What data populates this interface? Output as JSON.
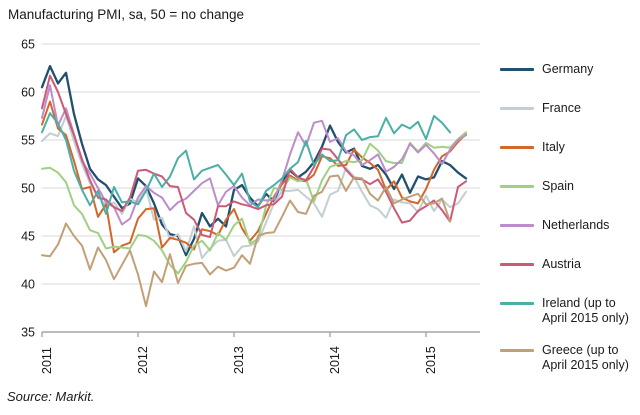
{
  "title": "Manufacturing PMI, sa, 50 = no change",
  "source": "Source: Markit.",
  "colors": {
    "gridline": "#d9d9d9",
    "axis": "#a6a6a6",
    "tick_label": "#1a1a1a"
  },
  "chart_data": {
    "type": "line",
    "title": "Manufacturing PMI, sa, 50 = no change",
    "xlabel": "",
    "ylabel": "",
    "ylim": [
      35,
      65
    ],
    "y_ticks": [
      65,
      60,
      55,
      50,
      45,
      40,
      35
    ],
    "x_ticks": [
      "2011",
      "2012",
      "2013",
      "2014",
      "2015"
    ],
    "grid": "horizontal",
    "legend_position": "right",
    "x": [
      "2011-01",
      "2011-02",
      "2011-03",
      "2011-04",
      "2011-05",
      "2011-06",
      "2011-07",
      "2011-08",
      "2011-09",
      "2011-10",
      "2011-11",
      "2011-12",
      "2012-01",
      "2012-02",
      "2012-03",
      "2012-04",
      "2012-05",
      "2012-06",
      "2012-07",
      "2012-08",
      "2012-09",
      "2012-10",
      "2012-11",
      "2012-12",
      "2013-01",
      "2013-02",
      "2013-03",
      "2013-04",
      "2013-05",
      "2013-06",
      "2013-07",
      "2013-08",
      "2013-09",
      "2013-10",
      "2013-11",
      "2013-12",
      "2014-01",
      "2014-02",
      "2014-03",
      "2014-04",
      "2014-05",
      "2014-06",
      "2014-07",
      "2014-08",
      "2014-09",
      "2014-10",
      "2014-11",
      "2014-12",
      "2015-01",
      "2015-02",
      "2015-03",
      "2015-04",
      "2015-05",
      "2015-06"
    ],
    "series": [
      {
        "name": "Germany",
        "color": "#21506f",
        "width": 2.3,
        "values": [
          60.5,
          62.7,
          60.9,
          62.0,
          57.7,
          54.6,
          52.0,
          50.9,
          50.3,
          49.1,
          47.9,
          48.4,
          51.0,
          50.2,
          48.4,
          46.2,
          45.2,
          45.0,
          43.0,
          44.7,
          47.4,
          46.0,
          46.8,
          46.0,
          49.8,
          50.3,
          49.0,
          48.1,
          49.4,
          48.6,
          50.7,
          51.8,
          51.1,
          51.7,
          52.7,
          54.3,
          56.5,
          54.8,
          53.7,
          54.1,
          52.3,
          52.0,
          52.4,
          51.4,
          49.9,
          51.4,
          49.5,
          51.2,
          50.9,
          51.1,
          52.8,
          52.4,
          51.6,
          51.0
        ]
      },
      {
        "name": "France",
        "color": "#c2ced2",
        "width": 2,
        "values": [
          54.9,
          55.7,
          55.4,
          57.5,
          54.9,
          52.5,
          50.5,
          49.1,
          48.2,
          48.5,
          47.3,
          48.9,
          48.5,
          50.0,
          46.7,
          46.9,
          44.7,
          45.2,
          43.4,
          46.0,
          42.7,
          43.7,
          44.5,
          44.6,
          42.9,
          43.9,
          44.0,
          44.4,
          46.4,
          48.4,
          49.7,
          49.7,
          49.8,
          49.1,
          48.4,
          47.0,
          49.3,
          49.7,
          52.1,
          51.2,
          49.6,
          48.2,
          47.8,
          46.9,
          48.8,
          48.5,
          48.4,
          47.5,
          49.2,
          47.6,
          48.8,
          48.0,
          48.4,
          49.6
        ]
      },
      {
        "name": "Italy",
        "color": "#d4662a",
        "width": 2,
        "values": [
          56.6,
          59.0,
          56.2,
          55.5,
          52.8,
          49.9,
          50.1,
          47.0,
          48.3,
          43.3,
          44.0,
          44.3,
          46.8,
          47.8,
          47.9,
          43.8,
          44.8,
          44.6,
          44.3,
          43.6,
          45.7,
          45.5,
          45.1,
          46.7,
          47.8,
          45.8,
          44.5,
          45.5,
          47.3,
          49.1,
          50.4,
          51.3,
          50.8,
          50.7,
          51.4,
          53.3,
          53.1,
          52.3,
          52.4,
          54.0,
          53.2,
          52.6,
          51.9,
          49.8,
          50.7,
          49.0,
          48.6,
          48.4,
          49.9,
          51.9,
          53.3,
          53.8,
          54.8,
          55.6
        ]
      },
      {
        "name": "Spain",
        "color": "#a0d083",
        "width": 2,
        "values": [
          52.0,
          52.1,
          51.6,
          50.6,
          48.2,
          47.3,
          45.6,
          45.3,
          43.7,
          43.9,
          43.8,
          43.7,
          45.1,
          45.0,
          44.5,
          43.5,
          42.0,
          41.1,
          42.3,
          44.0,
          44.5,
          43.5,
          45.3,
          44.6,
          46.1,
          46.8,
          44.2,
          44.7,
          48.1,
          50.0,
          49.8,
          51.1,
          50.7,
          50.9,
          48.6,
          50.8,
          52.2,
          52.5,
          52.8,
          52.7,
          52.9,
          54.6,
          53.9,
          52.8,
          52.6,
          52.6,
          54.7,
          53.8,
          54.7,
          54.2,
          54.3,
          54.2,
          55.1,
          55.8
        ]
      },
      {
        "name": "Netherlands",
        "color": "#bd8ccc",
        "width": 2,
        "values": [
          57.3,
          60.7,
          56.5,
          58.3,
          55.6,
          52.8,
          51.5,
          50.0,
          48.5,
          48.0,
          46.2,
          46.8,
          49.0,
          50.2,
          49.5,
          49.0,
          47.7,
          48.5,
          48.9,
          49.7,
          50.5,
          51.0,
          48.2,
          49.6,
          50.2,
          49.0,
          48.2,
          48.8,
          48.7,
          48.8,
          50.8,
          53.5,
          55.8,
          54.4,
          56.8,
          57.0,
          54.8,
          55.2,
          53.8,
          53.4,
          52.4,
          52.9,
          53.5,
          51.7,
          52.2,
          53.0,
          54.6,
          53.7,
          54.5,
          53.6,
          52.5,
          54.0,
          55.0,
          55.5
        ]
      },
      {
        "name": "Austria",
        "color": "#cc5a76",
        "width": 2,
        "values": [
          58.3,
          61.7,
          60.0,
          57.7,
          55.5,
          53.0,
          50.8,
          49.0,
          48.8,
          48.0,
          47.6,
          49.0,
          51.8,
          51.9,
          51.5,
          51.2,
          50.2,
          50.1,
          47.4,
          46.7,
          45.1,
          44.9,
          48.1,
          48.1,
          48.6,
          48.3,
          48.1,
          47.8,
          48.2,
          48.3,
          49.1,
          52.0,
          51.1,
          50.8,
          52.2,
          54.1,
          54.0,
          53.0,
          51.9,
          51.0,
          50.9,
          50.4,
          50.9,
          49.6,
          47.9,
          46.4,
          46.6,
          47.6,
          48.1,
          48.7,
          47.7,
          46.5,
          50.1,
          50.7
        ]
      },
      {
        "name": "Ireland (up to April 2015 only)",
        "color": "#4cafa6",
        "width": 2,
        "values": [
          55.8,
          57.8,
          56.7,
          55.0,
          51.8,
          49.8,
          48.2,
          49.7,
          47.3,
          50.1,
          48.5,
          48.6,
          48.3,
          49.7,
          51.5,
          50.1,
          51.2,
          53.1,
          53.9,
          50.9,
          51.8,
          52.1,
          52.4,
          51.4,
          50.3,
          51.5,
          48.6,
          48.0,
          49.7,
          50.3,
          51.0,
          52.0,
          52.7,
          54.9,
          52.4,
          53.5,
          52.8,
          52.9,
          55.5,
          56.1,
          55.0,
          55.3,
          55.4,
          57.3,
          55.7,
          56.6,
          56.2,
          56.9,
          55.1,
          57.5,
          56.8,
          55.8
        ]
      },
      {
        "name": "Greece (up to April 2015 only)",
        "color": "#c2a077",
        "width": 2,
        "values": [
          43.0,
          42.9,
          44.1,
          46.3,
          45.0,
          44.0,
          41.5,
          43.8,
          42.5,
          40.5,
          42.0,
          43.5,
          41.0,
          37.7,
          41.3,
          40.2,
          43.1,
          40.1,
          41.9,
          42.1,
          42.2,
          41.0,
          41.8,
          41.4,
          41.7,
          43.0,
          42.1,
          45.0,
          45.3,
          45.4,
          47.0,
          48.7,
          47.5,
          47.3,
          49.2,
          49.6,
          51.2,
          51.3,
          49.7,
          51.1,
          51.0,
          49.4,
          48.7,
          50.1,
          48.4,
          48.8,
          49.1,
          49.4,
          48.3,
          48.4,
          48.9,
          46.5
        ]
      }
    ]
  }
}
